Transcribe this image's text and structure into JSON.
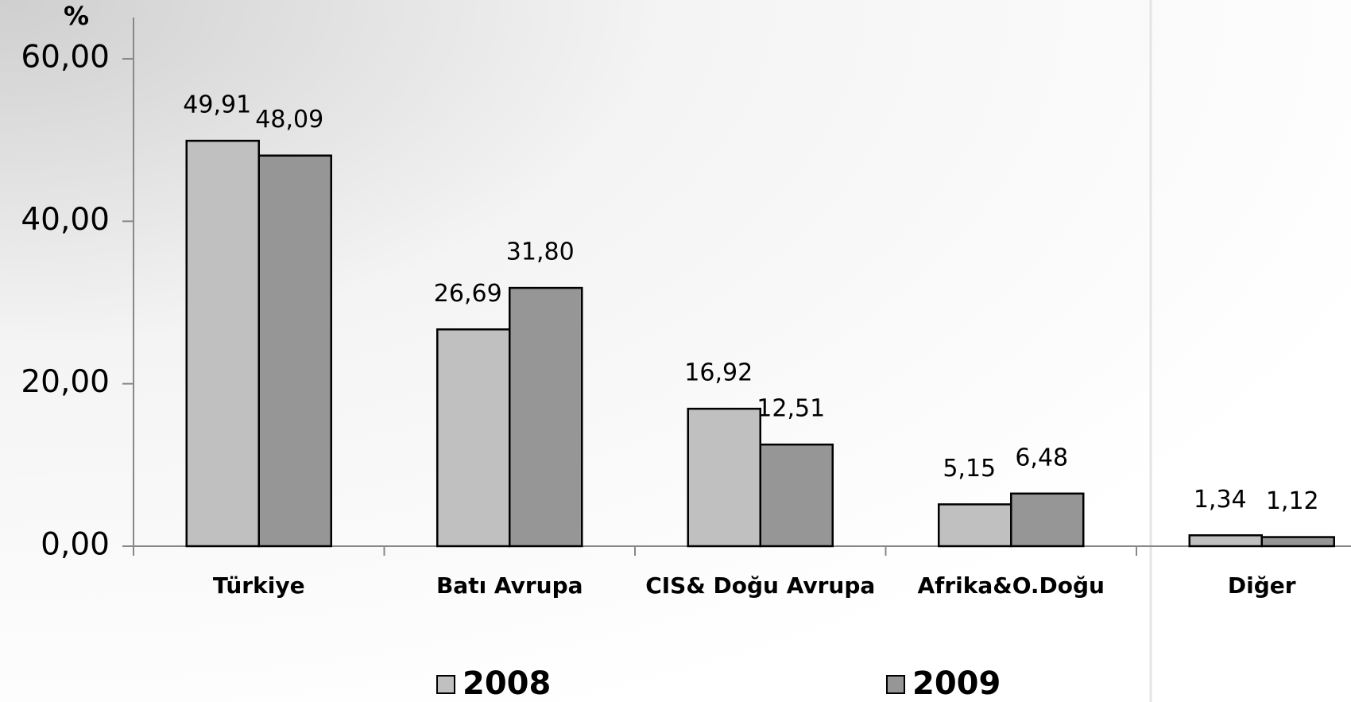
{
  "chart_data": {
    "type": "bar",
    "y_label": "%",
    "categories": [
      "Türkiye",
      "Batı Avrupa",
      "CIS& Doğu Avrupa",
      "Afrika&O.Doğu",
      "Diğer"
    ],
    "series": [
      {
        "name": "2008",
        "color": "#c0c0c0",
        "values": [
          49.91,
          26.69,
          16.92,
          5.15,
          1.34
        ],
        "value_labels": [
          "49,91",
          "26,69",
          "16,92",
          "5,15",
          "1,34"
        ]
      },
      {
        "name": "2009",
        "color": "#969696",
        "values": [
          48.09,
          31.8,
          12.51,
          6.48,
          1.12
        ],
        "value_labels": [
          "48,09",
          "31,80",
          "12,51",
          "6,48",
          "1,12"
        ]
      }
    ],
    "ylim": [
      0,
      60
    ],
    "yticks": [
      {
        "value": 0,
        "label": "0,00"
      },
      {
        "value": 20,
        "label": "20,00"
      },
      {
        "value": 40,
        "label": "40,00"
      },
      {
        "value": 60,
        "label": "60,00"
      }
    ]
  }
}
